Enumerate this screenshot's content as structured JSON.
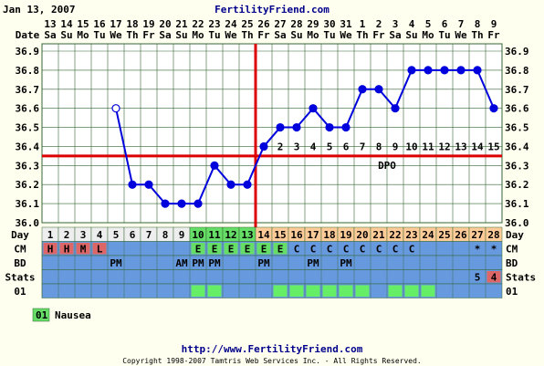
{
  "header": {
    "date_label": "Jan 13, 2007",
    "site": "FertilityFriend.com"
  },
  "row_labels": {
    "date": "Date",
    "day": "Day",
    "cm": "CM",
    "bd": "BD",
    "stats": "Stats",
    "custom": "01"
  },
  "legend": {
    "code": "01",
    "label": "Nausea",
    "color": "#66dd66"
  },
  "footer": {
    "url": "http://www.FertilityFriend.com",
    "copyright": "Copyright 1998-2007 Tamtris Web Services Inc. - All Rights Reserved."
  },
  "colors": {
    "background": "#fffff0",
    "grid": "#336633",
    "plot_bg": "#ffffff",
    "line": "#0000dd",
    "coverline": "#dd0000",
    "row_bg": "#6699dd",
    "day_follicular": "#eeeeee",
    "day_fertile": "#66dd66",
    "day_luteal": "#ffcc99",
    "menses": "#dd6666",
    "cm_fertile": "#66dd66",
    "stats_highlight": "#dd6666",
    "custom_mark": "#66ee66"
  },
  "chart_data": {
    "type": "line",
    "title": "",
    "xlabel": "Day",
    "ylabel": "",
    "ylim": [
      36.0,
      36.9
    ],
    "yticks": [
      "36.0",
      "36.1",
      "36.2",
      "36.3",
      "36.4",
      "36.5",
      "36.6",
      "36.7",
      "36.8",
      "36.9"
    ],
    "coverline": 36.35,
    "ovulation_day": 13,
    "dpo_label": "DPO",
    "dates": [
      "13",
      "14",
      "15",
      "16",
      "17",
      "18",
      "19",
      "20",
      "21",
      "22",
      "23",
      "24",
      "25",
      "26",
      "27",
      "28",
      "29",
      "30",
      "31",
      "1",
      "2",
      "3",
      "4",
      "5",
      "6",
      "7",
      "8",
      "9"
    ],
    "weekdays": [
      "Sa",
      "Su",
      "Mo",
      "Tu",
      "We",
      "Th",
      "Fr",
      "Sa",
      "Su",
      "Mo",
      "Tu",
      "We",
      "Th",
      "Fr",
      "Sa",
      "Su",
      "Mo",
      "Tu",
      "We",
      "Th",
      "Fr",
      "Sa",
      "Su",
      "Mo",
      "Tu",
      "We",
      "Th",
      "Fr"
    ],
    "cycle_days": [
      "1",
      "2",
      "3",
      "4",
      "5",
      "6",
      "7",
      "8",
      "9",
      "10",
      "11",
      "12",
      "13",
      "14",
      "15",
      "16",
      "17",
      "18",
      "19",
      "20",
      "21",
      "22",
      "23",
      "24",
      "25",
      "26",
      "27",
      "28"
    ],
    "day_phase": [
      "f",
      "f",
      "f",
      "f",
      "f",
      "f",
      "f",
      "f",
      "f",
      "F",
      "F",
      "F",
      "F",
      "L",
      "L",
      "L",
      "L",
      "L",
      "L",
      "L",
      "L",
      "L",
      "L",
      "L",
      "L",
      "L",
      "L",
      "L"
    ],
    "temps": [
      {
        "day": 5,
        "temp": 36.6,
        "open": true
      },
      {
        "day": 6,
        "temp": 36.2
      },
      {
        "day": 7,
        "temp": 36.2
      },
      {
        "day": 8,
        "temp": 36.1
      },
      {
        "day": 9,
        "temp": 36.1
      },
      {
        "day": 10,
        "temp": 36.1
      },
      {
        "day": 11,
        "temp": 36.3
      },
      {
        "day": 12,
        "temp": 36.2
      },
      {
        "day": 13,
        "temp": 36.2
      },
      {
        "day": 14,
        "temp": 36.4
      },
      {
        "day": 15,
        "temp": 36.5
      },
      {
        "day": 16,
        "temp": 36.5
      },
      {
        "day": 17,
        "temp": 36.6
      },
      {
        "day": 18,
        "temp": 36.5
      },
      {
        "day": 19,
        "temp": 36.5
      },
      {
        "day": 20,
        "temp": 36.7
      },
      {
        "day": 21,
        "temp": 36.7
      },
      {
        "day": 22,
        "temp": 36.6
      },
      {
        "day": 23,
        "temp": 36.8
      },
      {
        "day": 24,
        "temp": 36.8
      },
      {
        "day": 25,
        "temp": 36.8
      },
      {
        "day": 26,
        "temp": 36.8
      },
      {
        "day": 27,
        "temp": 36.8
      },
      {
        "day": 28,
        "temp": 36.6
      }
    ],
    "dpo_numbers": [
      "1",
      "2",
      "3",
      "4",
      "5",
      "6",
      "7",
      "8",
      "9",
      "10",
      "11",
      "12",
      "13",
      "14",
      "15"
    ],
    "cm": [
      "H",
      "H",
      "M",
      "L",
      "",
      "",
      "",
      "",
      "",
      "E",
      "E",
      "E",
      "E",
      "E",
      "E",
      "C",
      "C",
      "C",
      "C",
      "C",
      "C",
      "C",
      "C",
      "",
      "",
      "",
      "*",
      "*"
    ],
    "bd": [
      "",
      "",
      "",
      "",
      "PM",
      "",
      "",
      "",
      "AM",
      "PM",
      "PM",
      "",
      "",
      "PM",
      "",
      "",
      "PM",
      "",
      "PM",
      "",
      "",
      "",
      "",
      "",
      "",
      "",
      "",
      ""
    ],
    "stats": [
      "",
      "",
      "",
      "",
      "",
      "",
      "",
      "",
      "",
      "",
      "",
      "",
      "",
      "",
      "",
      "",
      "",
      "",
      "",
      "",
      "",
      "",
      "",
      "",
      "",
      "",
      "5",
      "4"
    ],
    "custom": [
      false,
      false,
      false,
      false,
      false,
      false,
      false,
      false,
      false,
      true,
      true,
      false,
      false,
      false,
      true,
      true,
      true,
      true,
      true,
      true,
      false,
      true,
      true,
      true,
      false,
      false,
      false,
      false
    ]
  }
}
